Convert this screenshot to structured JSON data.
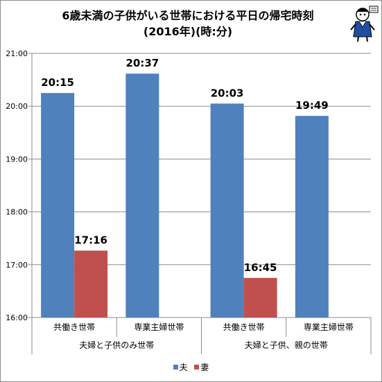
{
  "title_lines": [
    "6歳未満の子供がいる世帯における平日の帰宅時刻",
    "(2016年)(時:分)"
  ],
  "colors": {
    "husband": "#4f81bd",
    "wife": "#c0504d",
    "grid": "#8c8c8c",
    "axis": "#8c8c8c"
  },
  "chart_data": {
    "type": "bar",
    "title": "6歳未満の子供がいる世帯における平日の帰宅時刻 (2016年)(時:分)",
    "y_unit": "hours",
    "ylim": [
      16,
      21
    ],
    "yticks": [
      16,
      17,
      18,
      19,
      20,
      21
    ],
    "ytick_labels": [
      "16:00",
      "17:00",
      "18:00",
      "19:00",
      "20:00",
      "21:00"
    ],
    "grid": true,
    "categories": [
      "共働き世帯",
      "専業主婦世帯",
      "共働き世帯",
      "専業主婦世帯"
    ],
    "groups": [
      {
        "label": "夫婦と子供のみ世帯",
        "categories": [
          0,
          1
        ]
      },
      {
        "label": "夫婦と子供、親の世帯",
        "categories": [
          2,
          3
        ]
      }
    ],
    "series": [
      {
        "name": "夫",
        "color": "#4f81bd",
        "values": [
          20.25,
          20.6167,
          20.05,
          19.8167
        ],
        "labels": [
          "20:15",
          "20:37",
          "20:03",
          "19:49"
        ]
      },
      {
        "name": "妻",
        "color": "#c0504d",
        "values": [
          17.2667,
          null,
          16.75,
          null
        ],
        "labels": [
          "17:16",
          "",
          "16:45",
          ""
        ]
      }
    ],
    "legend_position": "bottom"
  }
}
